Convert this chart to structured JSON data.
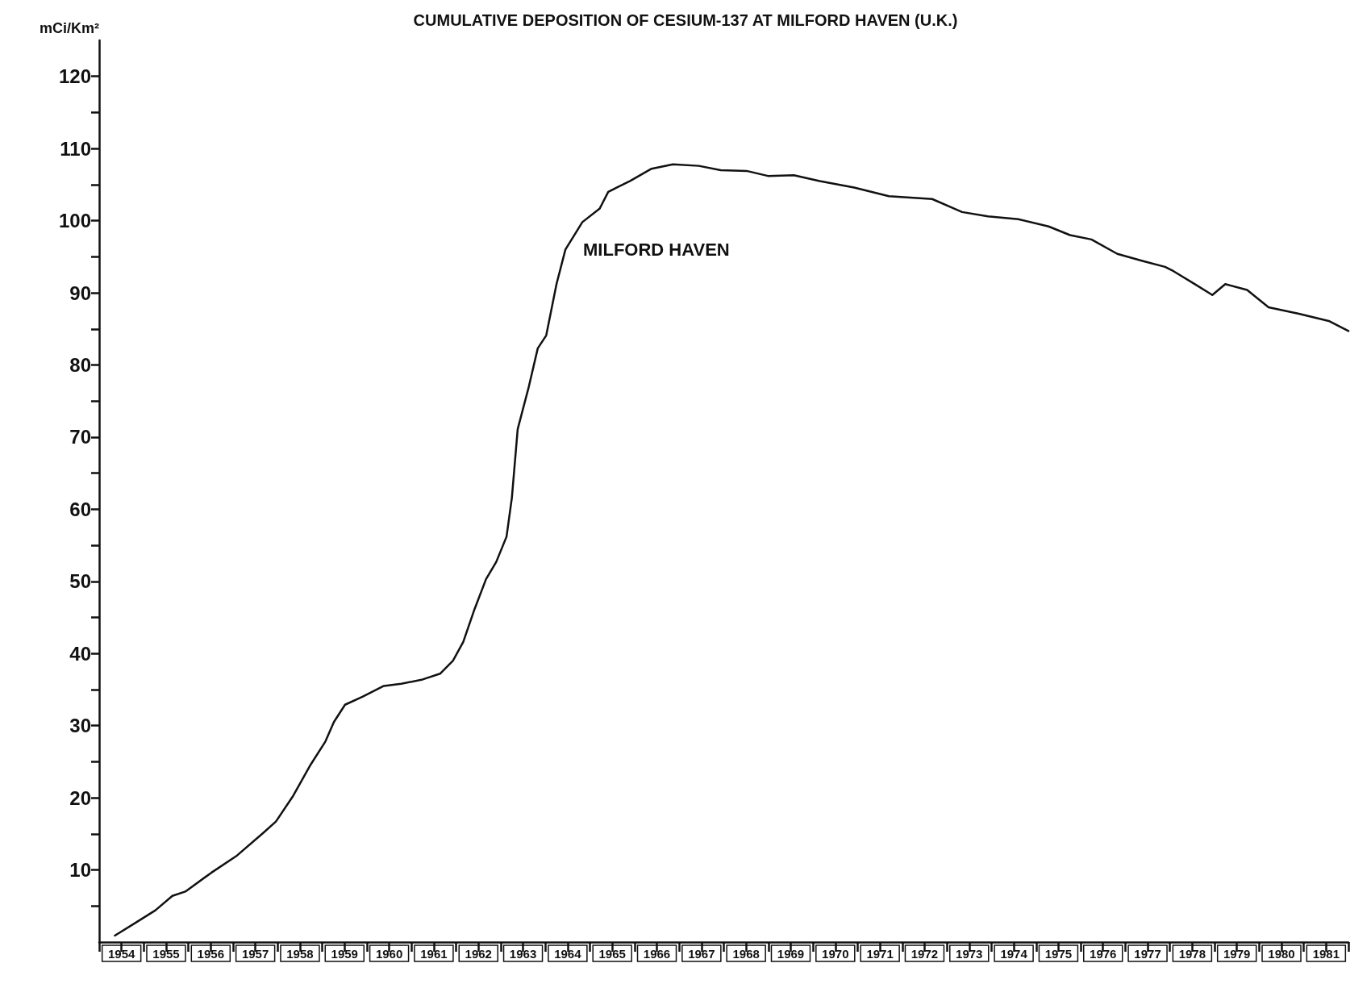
{
  "chart_data": {
    "type": "line",
    "title": "CUMULATIVE DEPOSITION OF CESIUM-137 AT MILFORD HAVEN (U.K.)",
    "ylabel": "mCi/Km²",
    "color": "#111111",
    "annotations": [
      "MILFORD HAVEN"
    ],
    "xlim": [
      1954,
      1982
    ],
    "xticks": [
      {
        "value": 1954,
        "label": null
      },
      {
        "value": 1954.5,
        "label": "1954"
      },
      {
        "value": 1955,
        "label": null
      },
      {
        "value": 1955.5,
        "label": "1955"
      },
      {
        "value": 1956,
        "label": null
      },
      {
        "value": 1956.5,
        "label": "1956"
      },
      {
        "value": 1957,
        "label": null
      },
      {
        "value": 1957.5,
        "label": "1957"
      },
      {
        "value": 1958,
        "label": null
      },
      {
        "value": 1958.5,
        "label": "1958"
      },
      {
        "value": 1959,
        "label": null
      },
      {
        "value": 1959.5,
        "label": "1959"
      },
      {
        "value": 1960,
        "label": null
      },
      {
        "value": 1960.5,
        "label": "1960"
      },
      {
        "value": 1961,
        "label": null
      },
      {
        "value": 1961.5,
        "label": "1961"
      },
      {
        "value": 1962,
        "label": null
      },
      {
        "value": 1962.5,
        "label": "1962"
      },
      {
        "value": 1963,
        "label": null
      },
      {
        "value": 1963.5,
        "label": "1963"
      },
      {
        "value": 1964,
        "label": null
      },
      {
        "value": 1964.5,
        "label": "1964"
      },
      {
        "value": 1965,
        "label": null
      },
      {
        "value": 1965.5,
        "label": "1965"
      },
      {
        "value": 1966,
        "label": null
      },
      {
        "value": 1966.5,
        "label": "1966"
      },
      {
        "value": 1967,
        "label": null
      },
      {
        "value": 1967.5,
        "label": "1967"
      },
      {
        "value": 1968,
        "label": null
      },
      {
        "value": 1968.5,
        "label": "1968"
      },
      {
        "value": 1969,
        "label": null
      },
      {
        "value": 1969.5,
        "label": "1969"
      },
      {
        "value": 1970,
        "label": null
      },
      {
        "value": 1970.5,
        "label": "1970"
      },
      {
        "value": 1971,
        "label": null
      },
      {
        "value": 1971.5,
        "label": "1971"
      },
      {
        "value": 1972,
        "label": null
      },
      {
        "value": 1972.5,
        "label": "1972"
      },
      {
        "value": 1973,
        "label": null
      },
      {
        "value": 1973.5,
        "label": "1973"
      },
      {
        "value": 1974,
        "label": null
      },
      {
        "value": 1974.5,
        "label": "1974"
      },
      {
        "value": 1975,
        "label": null
      },
      {
        "value": 1975.5,
        "label": "1975"
      },
      {
        "value": 1976,
        "label": null
      },
      {
        "value": 1976.5,
        "label": "1976"
      },
      {
        "value": 1977,
        "label": null
      },
      {
        "value": 1977.5,
        "label": "1977"
      },
      {
        "value": 1978,
        "label": null
      },
      {
        "value": 1978.5,
        "label": "1978"
      },
      {
        "value": 1979,
        "label": null
      },
      {
        "value": 1979.5,
        "label": "1979"
      },
      {
        "value": 1980,
        "label": null
      },
      {
        "value": 1980.5,
        "label": "1980"
      },
      {
        "value": 1981,
        "label": null
      },
      {
        "value": 1981.5,
        "label": "1981"
      },
      {
        "value": 1982,
        "label": null
      }
    ],
    "ylim": [
      0,
      125
    ],
    "yticks": [
      {
        "value": 5,
        "label": null
      },
      10,
      {
        "value": 15,
        "label": null
      },
      20,
      {
        "value": 25,
        "label": null
      },
      30,
      {
        "value": 35,
        "label": null
      },
      40,
      {
        "value": 45,
        "label": null
      },
      50,
      {
        "value": 55,
        "label": null
      },
      60,
      {
        "value": 65,
        "label": null
      },
      70,
      {
        "value": 75,
        "label": null
      },
      80,
      {
        "value": 85,
        "label": null
      },
      90,
      {
        "value": 95,
        "label": null
      },
      100,
      {
        "value": 105,
        "label": null
      },
      110,
      {
        "value": 115,
        "label": null
      },
      120
    ],
    "grid": false,
    "marker": "none",
    "line_style": "solid",
    "x": [
      1954.35,
      1954.77,
      1955.26,
      1955.64,
      1955.93,
      1956.51,
      1957.09,
      1957.67,
      1957.96,
      1958.35,
      1958.74,
      1959.07,
      1959.26,
      1959.51,
      1959.9,
      1960.38,
      1960.77,
      1961.25,
      1961.64,
      1961.93,
      1962.16,
      1962.41,
      1962.67,
      1962.9,
      1963.13,
      1963.25,
      1963.38,
      1963.63,
      1963.83,
      1964.02,
      1964.25,
      1964.45,
      1964.83,
      1965.22,
      1965.41,
      1965.9,
      1966.38,
      1966.86,
      1967.44,
      1967.93,
      1968.51,
      1968.99,
      1969.57,
      1970.15,
      1970.92,
      1971.7,
      1972.67,
      1973.34,
      1973.92,
      1974.6,
      1975.28,
      1975.76,
      1976.24,
      1976.82,
      1977.4,
      1977.89,
      1978.08,
      1978.56,
      1978.95,
      1979.24,
      1979.73,
      1980.21,
      1980.89,
      1981.56,
      1982
    ],
    "values": [
      0.9,
      2.5,
      4.4,
      6.4,
      7,
      9.6,
      12,
      15.1,
      16.7,
      20.3,
      24.6,
      27.8,
      30.5,
      32.9,
      34,
      35.5,
      35.8,
      36.4,
      37.2,
      39,
      41.6,
      46.1,
      50.3,
      52.7,
      56.2,
      61.6,
      71.1,
      77,
      82.3,
      84.1,
      91.2,
      96,
      99.8,
      101.7,
      104,
      105.5,
      107.2,
      107.8,
      107.6,
      107,
      106.9,
      106.2,
      106.3,
      105.5,
      104.6,
      103.4,
      103,
      101.2,
      100.6,
      100.2,
      99.2,
      98,
      97.4,
      95.4,
      94.4,
      93.6,
      93,
      91.2,
      89.7,
      91.2,
      90.4,
      88,
      87.1,
      86.1,
      84.7
    ]
  }
}
